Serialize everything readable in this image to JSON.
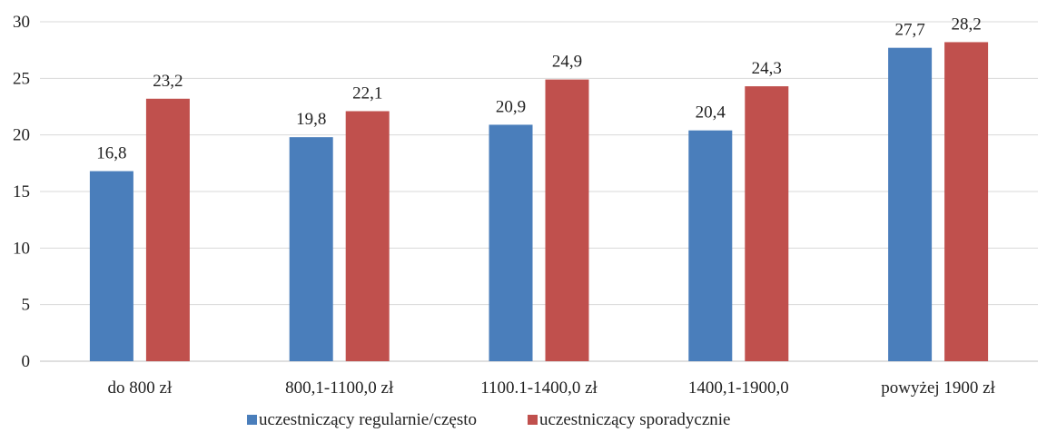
{
  "chart_data": {
    "type": "bar",
    "categories": [
      "do 800 zł",
      "800,1-1100,0 zł",
      "1100.1-1400,0 zł",
      "1400,1-1900,0",
      "powyżej 1900 zł"
    ],
    "series": [
      {
        "name": "uczestniczący regularnie/często",
        "values": [
          16.8,
          19.8,
          20.9,
          20.4,
          27.7
        ],
        "color": "#4a7ebb",
        "labels": [
          "16,8",
          "19,8",
          "20,9",
          "20,4",
          "27,7"
        ]
      },
      {
        "name": "uczestniczący sporadycznie",
        "values": [
          23.2,
          22.1,
          24.9,
          24.3,
          28.2
        ],
        "color": "#c0504d",
        "labels": [
          "23,2",
          "22,1",
          "24,9",
          "24,3",
          "28,2"
        ]
      }
    ],
    "yticks": [
      "0",
      "5",
      "10",
      "15",
      "20",
      "25",
      "30"
    ],
    "ylim": [
      0,
      30
    ],
    "grid": true,
    "gridColor": "#d9d9d9",
    "legend_position": "bottom"
  }
}
